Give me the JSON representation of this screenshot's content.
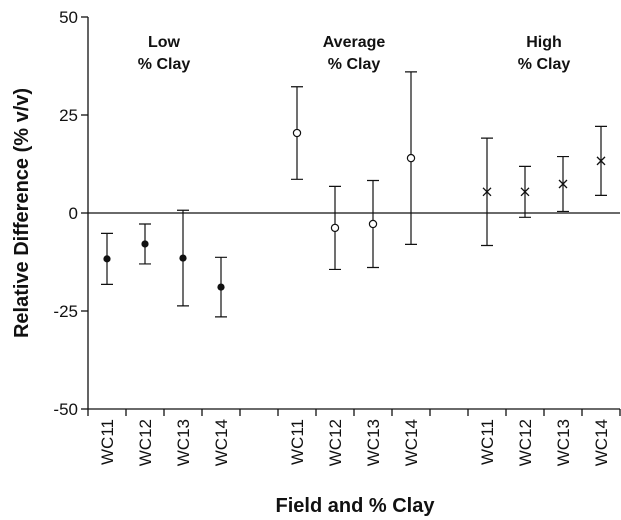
{
  "chart_data": {
    "type": "errorbar",
    "x_label": "Field and % Clay",
    "y_label": "Relative Difference (% v/v)",
    "categories": [
      "WC11",
      "WC12",
      "WC13",
      "WC14",
      null,
      "WC11",
      "WC12",
      "WC13",
      "WC14",
      null,
      "WC11",
      "WC12",
      "WC13",
      "WC14"
    ],
    "ylim": [
      -50,
      50
    ],
    "yticks": [
      -50,
      -25,
      0,
      25,
      50
    ],
    "zero_line": true,
    "series": [
      {
        "label": [
          "Low",
          "% Clay"
        ],
        "marker": "filled-circle",
        "color": "#111111",
        "values": [
          -11.7,
          -7.9,
          -11.5,
          -18.9,
          null,
          null,
          null,
          null,
          null,
          null,
          null,
          null,
          null,
          null
        ],
        "errors": [
          6.5,
          5.1,
          12.2,
          7.6,
          null,
          null,
          null,
          null,
          null,
          null,
          null,
          null,
          null,
          null
        ]
      },
      {
        "label": [
          "Average",
          "% Clay"
        ],
        "marker": "open-circle",
        "color": "#111111",
        "values": [
          null,
          null,
          null,
          null,
          null,
          20.4,
          -3.8,
          -2.8,
          14.0,
          null,
          null,
          null,
          null,
          null
        ],
        "errors": [
          null,
          null,
          null,
          null,
          null,
          11.8,
          10.6,
          11.1,
          22.0,
          null,
          null,
          null,
          null,
          null
        ]
      },
      {
        "label": [
          "High",
          "% Clay"
        ],
        "marker": "x",
        "color": "#111111",
        "values": [
          null,
          null,
          null,
          null,
          null,
          null,
          null,
          null,
          null,
          null,
          5.4,
          5.4,
          7.4,
          13.3
        ],
        "errors": [
          null,
          null,
          null,
          null,
          null,
          null,
          null,
          null,
          null,
          null,
          13.7,
          6.5,
          7.0,
          8.8
        ]
      }
    ]
  }
}
